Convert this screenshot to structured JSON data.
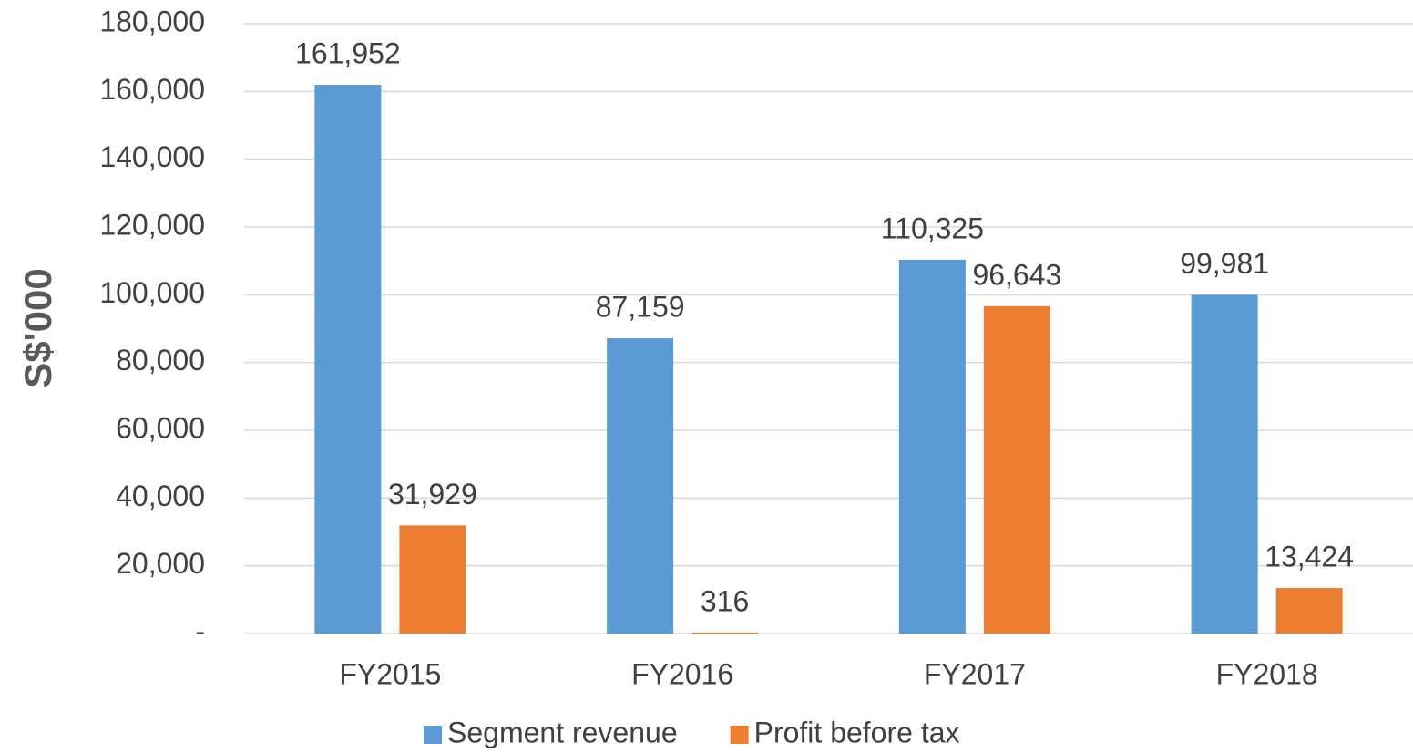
{
  "chart_data": {
    "type": "bar",
    "y_label": "S$'000",
    "categories": [
      "FY2015",
      "FY2016",
      "FY2017",
      "FY2018"
    ],
    "series": [
      {
        "name": "Segment revenue",
        "color": "#5b9bd5",
        "values": [
          161952,
          87159,
          110325,
          99981
        ],
        "value_labels": [
          "161,952",
          "87,159",
          "110,325",
          "99,981"
        ]
      },
      {
        "name": "Profit before tax",
        "color": "#ed7d31",
        "values": [
          31929,
          316,
          96643,
          13424
        ],
        "value_labels": [
          "31,929",
          "316",
          "96,643",
          "13,424"
        ]
      }
    ],
    "ylim": [
      0,
      180000
    ],
    "yticks": [
      {
        "value": 0,
        "label": "-"
      },
      {
        "value": 20000,
        "label": "20,000"
      },
      {
        "value": 40000,
        "label": "40,000"
      },
      {
        "value": 60000,
        "label": "60,000"
      },
      {
        "value": 80000,
        "label": "80,000"
      },
      {
        "value": 100000,
        "label": "100,000"
      },
      {
        "value": 120000,
        "label": "120,000"
      },
      {
        "value": 140000,
        "label": "140,000"
      },
      {
        "value": 160000,
        "label": "160,000"
      },
      {
        "value": 180000,
        "label": "180,000"
      }
    ],
    "grid": true,
    "legend": "bottom"
  }
}
